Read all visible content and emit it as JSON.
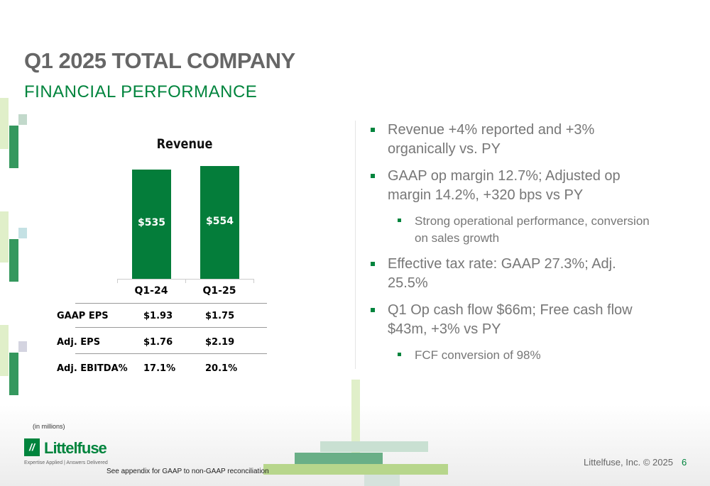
{
  "title": "Q1 2025 TOTAL COMPANY",
  "subtitle": "FINANCIAL PERFORMANCE",
  "chart_data": {
    "type": "bar",
    "title": "Revenue",
    "categories": [
      "Q1-24",
      "Q1-25"
    ],
    "values": [
      535,
      554
    ],
    "data_labels": [
      "$535",
      "$554"
    ],
    "ylim": [
      0,
      554
    ],
    "color": "#047d3a",
    "note": "(in millions)"
  },
  "table": {
    "rows": [
      {
        "label": "GAAP EPS",
        "values": [
          "$1.93",
          "$1.75"
        ]
      },
      {
        "label": "Adj. EPS",
        "values": [
          "$1.76",
          "$2.19"
        ]
      },
      {
        "label": "Adj. EBITDA%",
        "values": [
          "17.1%",
          "20.1%"
        ]
      }
    ]
  },
  "bullets": [
    "Revenue +4% reported and +3% organically vs. PY",
    "GAAP op margin 12.7%; Adjusted op margin 14.2%, +320 bps vs PY",
    "Strong operational performance, conversion on sales growth",
    "Effective tax rate: GAAP 27.3%; Adj. 25.5%",
    "Q1 Op cash flow $66m; Free cash flow $43m, +3% vs PY",
    "FCF conversion of 98%"
  ],
  "footer": {
    "logo_text": "Littelfuse",
    "tagline": "Expertise Applied | Answers Delivered",
    "note": "See appendix for GAAP to non-GAAP reconciliation",
    "copyright": "Littelfuse, Inc. © 2025",
    "page": "6"
  }
}
